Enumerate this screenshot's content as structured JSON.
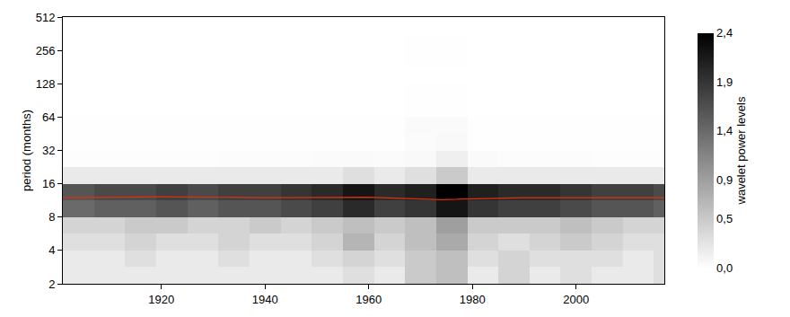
{
  "chart_data": {
    "type": "heatmap",
    "y_label": "period (months)",
    "colorbar_title": "wavelet power levels",
    "log": "y",
    "xlim": [
      1901,
      2017
    ],
    "xticks": [
      1920,
      1940,
      1960,
      1980,
      2000
    ],
    "ylim": [
      2,
      512
    ],
    "yticks": [
      2,
      4,
      8,
      16,
      32,
      64,
      128,
      256,
      512
    ],
    "colorscale": [
      "#ffffff",
      "#000000"
    ],
    "color_range": [
      0,
      2.4
    ],
    "color_ticks": [
      {
        "value": 0,
        "label": "0,0"
      },
      {
        "value": 0.5,
        "label": "0,5"
      },
      {
        "value": 0.9,
        "label": "0,9"
      },
      {
        "value": 1.4,
        "label": "1,4"
      },
      {
        "value": 1.9,
        "label": "1,9"
      },
      {
        "value": 2.4,
        "label": "2,4"
      }
    ],
    "x_edges": [
      1901,
      1907,
      1913,
      1919,
      1925,
      1931,
      1937,
      1943,
      1949,
      1955,
      1961,
      1967,
      1973,
      1979,
      1985,
      1991,
      1997,
      2003,
      2009,
      2015,
      2017
    ],
    "period_edges": [
      2,
      2.83,
      4,
      5.66,
      8,
      11.31,
      16,
      22.63,
      32,
      45.25,
      64,
      90.51,
      128,
      181.02,
      256,
      362.04,
      512
    ],
    "cells": [
      [
        0.2,
        0.2,
        0.2,
        0.2,
        0.2,
        0.2,
        0.2,
        0.2,
        0.2,
        0.3,
        0.2,
        0.5,
        0.6,
        0.2,
        0.4,
        0.2,
        0.3,
        0.2,
        0.2,
        0.3
      ],
      [
        0.2,
        0.2,
        0.3,
        0.2,
        0.2,
        0.3,
        0.2,
        0.2,
        0.3,
        0.4,
        0.3,
        0.5,
        0.6,
        0.3,
        0.4,
        0.3,
        0.3,
        0.3,
        0.2,
        0.3
      ],
      [
        0.3,
        0.3,
        0.4,
        0.3,
        0.3,
        0.4,
        0.3,
        0.3,
        0.4,
        0.7,
        0.4,
        0.6,
        0.8,
        0.4,
        0.3,
        0.4,
        0.5,
        0.4,
        0.3,
        0.3
      ],
      [
        0.4,
        0.4,
        0.5,
        0.5,
        0.4,
        0.4,
        0.5,
        0.4,
        0.5,
        0.6,
        0.5,
        0.6,
        0.9,
        0.5,
        0.5,
        0.5,
        0.6,
        0.5,
        0.4,
        0.4
      ],
      [
        1.4,
        1.5,
        1.5,
        1.6,
        1.5,
        1.6,
        1.6,
        1.7,
        1.8,
        2.0,
        1.8,
        1.9,
        2.2,
        1.9,
        1.8,
        1.8,
        1.7,
        1.6,
        1.6,
        1.5
      ],
      [
        1.6,
        1.7,
        1.7,
        1.8,
        1.7,
        1.8,
        1.8,
        1.9,
        2.0,
        2.2,
        2.0,
        2.1,
        2.4,
        2.1,
        2.0,
        2.0,
        1.9,
        1.8,
        1.8,
        1.7
      ],
      [
        0.2,
        0.2,
        0.2,
        0.2,
        0.2,
        0.2,
        0.2,
        0.2,
        0.2,
        0.3,
        0.2,
        0.3,
        0.5,
        0.2,
        0.2,
        0.2,
        0.2,
        0.2,
        0.2,
        0.2
      ],
      [
        0.02,
        0.02,
        0.02,
        0.02,
        0.02,
        0.03,
        0.03,
        0.03,
        0.04,
        0.05,
        0.04,
        0.06,
        0.15,
        0.05,
        0.03,
        0.03,
        0.03,
        0.02,
        0.02,
        0.02
      ],
      [
        0.01,
        0.01,
        0.01,
        0.01,
        0.01,
        0.01,
        0.01,
        0.01,
        0.01,
        0.01,
        0.01,
        0.04,
        0.06,
        0.01,
        0.01,
        0.01,
        0.01,
        0.01,
        0.01,
        0.01
      ],
      [
        0.01,
        0.01,
        0.01,
        0.01,
        0.01,
        0.01,
        0.01,
        0.01,
        0.01,
        0.01,
        0.01,
        0.05,
        0.05,
        0.01,
        0.01,
        0.01,
        0.01,
        0.01,
        0.01,
        0.01
      ],
      [
        0,
        0,
        0,
        0,
        0,
        0,
        0,
        0,
        0,
        0,
        0,
        0.01,
        0.01,
        0,
        0,
        0,
        0,
        0,
        0,
        0
      ],
      [
        0,
        0,
        0,
        0,
        0,
        0,
        0,
        0,
        0,
        0,
        0,
        0.01,
        0.01,
        0,
        0,
        0,
        0,
        0,
        0,
        0
      ],
      [
        0,
        0,
        0,
        0,
        0,
        0,
        0,
        0,
        0,
        0,
        0,
        0,
        0,
        0,
        0,
        0,
        0,
        0,
        0,
        0
      ],
      [
        0,
        0,
        0,
        0,
        0,
        0,
        0,
        0,
        0,
        0,
        0,
        0.01,
        0.01,
        0,
        0,
        0,
        0,
        0,
        0,
        0
      ],
      [
        0,
        0,
        0,
        0,
        0,
        0,
        0,
        0,
        0,
        0,
        0,
        0.01,
        0.01,
        0,
        0,
        0,
        0,
        0,
        0,
        0
      ],
      [
        0,
        0,
        0,
        0,
        0,
        0,
        0,
        0,
        0,
        0,
        0,
        0,
        0,
        0,
        0,
        0,
        0,
        0,
        0,
        0
      ]
    ],
    "series": [
      {
        "type": "line",
        "color": "#e03010",
        "x": [
          1901,
          1920,
          1940,
          1960,
          1974,
          1990,
          2017
        ],
        "values": [
          12,
          12.2,
          12,
          12.1,
          11.5,
          12,
          12
        ]
      }
    ]
  }
}
